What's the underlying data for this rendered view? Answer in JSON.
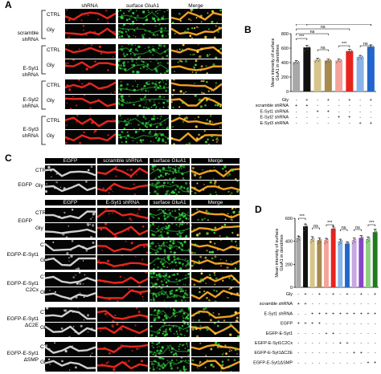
{
  "panel_A": {
    "letter": "A",
    "headers": [
      "shRNA",
      "surface GluA1",
      "Merge"
    ],
    "groups": [
      {
        "lines": [
          "scramble",
          "shRNA"
        ],
        "rows": [
          "CTRL",
          "Gly"
        ]
      },
      {
        "lines": [
          "E-Syt1",
          "shRNA"
        ],
        "rows": [
          "CTRL",
          "Gly"
        ]
      },
      {
        "lines": [
          "E-Syt2",
          "shRNA"
        ],
        "rows": [
          "CTRL",
          "Gly"
        ]
      },
      {
        "lines": [
          "E-Syt3",
          "shRNA"
        ],
        "rows": [
          "CTRL",
          "Gly"
        ]
      }
    ]
  },
  "panel_C": {
    "letter": "C",
    "top_headers": [
      "EGFP",
      "scramble shRNA",
      "surface GluA1",
      "Merge"
    ],
    "bottom_headers": [
      "EGFP",
      "E-Syt1 shRNA",
      "surface GluA1",
      "Merge"
    ],
    "top_group": {
      "lines": [
        "EGFP"
      ],
      "rows": [
        "CTRL",
        "Gly"
      ]
    },
    "groups": [
      {
        "lines": [
          "EGFP"
        ],
        "rows": [
          "CTRL",
          "Gly"
        ]
      },
      {
        "lines": [
          "EGFP-E-Syt1"
        ],
        "rows": [
          "CTRL",
          "Gly"
        ]
      },
      {
        "lines": [
          "EGFP-E-Syt1",
          "C2Cx"
        ],
        "rows": [
          "CTRL",
          "Gly"
        ]
      },
      {
        "lines": [
          "EGFP-E-Syt1",
          "ΔC2E"
        ],
        "rows": [
          "CTRL",
          "Gly"
        ]
      },
      {
        "lines": [
          "EGFP-E-Syt1",
          "ΔSMP"
        ],
        "rows": [
          "CTRL",
          "Gly"
        ]
      }
    ]
  },
  "chart_data": [
    {
      "panel": "B",
      "type": "bar",
      "ylabel": "Mean intensity of surface GluA1 in dendrites",
      "ylim": [
        0,
        800
      ],
      "yticks": [
        "0",
        "200",
        "400",
        "600",
        "800"
      ],
      "values": [
        410,
        610,
        440,
        430,
        430,
        560,
        480,
        620
      ],
      "errors": [
        18,
        28,
        20,
        18,
        18,
        22,
        18,
        25
      ],
      "colors": [
        "#a8a8a8",
        "#111111",
        "#d6c48a",
        "#a68a4e",
        "#f3a39a",
        "#e8231e",
        "#8ab4e8",
        "#2266cc"
      ],
      "conditions": [
        {
          "label": "Gly",
          "signs": [
            "-",
            "+",
            "-",
            "+",
            "-",
            "+",
            "-",
            "+"
          ]
        },
        {
          "label": "scramble shRNA",
          "signs": [
            "+",
            "+",
            "-",
            "-",
            "-",
            "-",
            "-",
            "-"
          ]
        },
        {
          "label": "E-Syt1 shRNA",
          "signs": [
            "-",
            "-",
            "+",
            "+",
            "-",
            "-",
            "-",
            "-"
          ]
        },
        {
          "label": "E-Syt2 shRNA",
          "signs": [
            "-",
            "-",
            "-",
            "-",
            "+",
            "+",
            "-",
            "-"
          ]
        },
        {
          "label": "E-Syt3 shRNA",
          "signs": [
            "-",
            "-",
            "-",
            "-",
            "-",
            "-",
            "+",
            "+"
          ]
        }
      ],
      "annotations": [
        "***",
        "ns",
        "ns",
        "***",
        "ns",
        "***",
        "ns",
        "***"
      ]
    },
    {
      "panel": "D",
      "type": "bar",
      "ylabel": "Mean intensity of surface GluA1 in dendrites",
      "ylim": [
        0,
        600
      ],
      "yticks": [
        "0",
        "200",
        "400",
        "600"
      ],
      "values": [
        430,
        530,
        420,
        410,
        410,
        510,
        400,
        380,
        410,
        430,
        420,
        480
      ],
      "errors": [
        15,
        20,
        20,
        18,
        15,
        20,
        18,
        15,
        18,
        20,
        18,
        25
      ],
      "colors": [
        "#a8a8a8",
        "#111111",
        "#d6c48a",
        "#a68a4e",
        "#f3a39a",
        "#e8231e",
        "#8ab4e8",
        "#2266cc",
        "#c7a8e0",
        "#8a44c8",
        "#8fd07f",
        "#1f7a1f"
      ],
      "conditions": [
        {
          "label": "Gly",
          "signs": [
            "-",
            "+",
            "-",
            "+",
            "-",
            "+",
            "-",
            "+",
            "-",
            "+",
            "-",
            "+"
          ]
        },
        {
          "label": "scramble shRNA",
          "signs": [
            "+",
            "+",
            "-",
            "-",
            "-",
            "-",
            "-",
            "-",
            "-",
            "-",
            "-",
            "-"
          ]
        },
        {
          "label": "E-Syt1 shRNA",
          "signs": [
            "-",
            "-",
            "+",
            "+",
            "+",
            "+",
            "+",
            "+",
            "+",
            "+",
            "+",
            "+"
          ]
        },
        {
          "label": "EGFP",
          "signs": [
            "+",
            "+",
            "+",
            "+",
            "-",
            "-",
            "-",
            "-",
            "-",
            "-",
            "-",
            "-"
          ]
        },
        {
          "label": "EGFP-E-Syt1",
          "signs": [
            "-",
            "-",
            "-",
            "-",
            "+",
            "+",
            "-",
            "-",
            "-",
            "-",
            "-",
            "-"
          ]
        },
        {
          "label": "EGFP-E-Syt1C2Cx",
          "signs": [
            "-",
            "-",
            "-",
            "-",
            "-",
            "-",
            "+",
            "+",
            "-",
            "-",
            "-",
            "-"
          ]
        },
        {
          "label": "EGFP-E-Syt1ΔC2E",
          "signs": [
            "-",
            "-",
            "-",
            "-",
            "-",
            "-",
            "-",
            "-",
            "+",
            "+",
            "-",
            "-"
          ]
        },
        {
          "label": "EGFP-E-Syt1ΔSMP",
          "signs": [
            "-",
            "-",
            "-",
            "-",
            "-",
            "-",
            "-",
            "-",
            "-",
            "-",
            "+",
            "+"
          ]
        }
      ],
      "annotations": [
        "***",
        "ns",
        "***",
        "ns",
        "ns",
        "***"
      ]
    }
  ]
}
